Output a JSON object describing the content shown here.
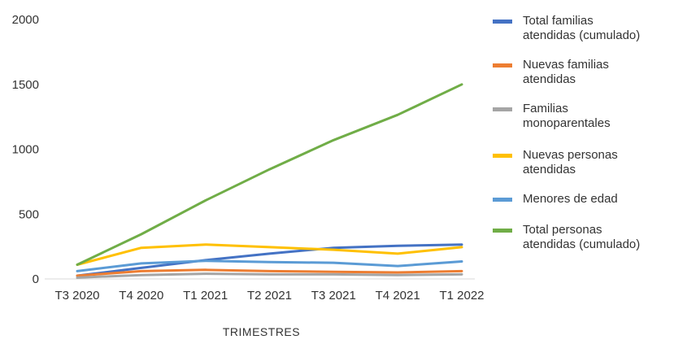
{
  "chart_data": {
    "type": "line",
    "title": "",
    "xlabel": "TRIMESTRES",
    "ylabel": "",
    "ylim": [
      0,
      2000
    ],
    "yticks": [
      0,
      500,
      1000,
      1500,
      2000
    ],
    "grid": false,
    "legend_position": "right",
    "categories": [
      "T3 2020",
      "T4 2020",
      "T1 2021",
      "T2 2021",
      "T3 2021",
      "T4 2021",
      "T1 2022"
    ],
    "series": [
      {
        "name": "Total familias atendidas (cumulado)",
        "legend_lines": [
          "Total familias",
          "atendidas (cumulado)"
        ],
        "color": "#4472C4",
        "values": [
          25,
          85,
          145,
          195,
          240,
          255,
          265
        ]
      },
      {
        "name": "Nuevas familias atendidas",
        "legend_lines": [
          "Nuevas familias",
          "atendidas"
        ],
        "color": "#ED7D31",
        "values": [
          25,
          60,
          70,
          60,
          55,
          50,
          60
        ]
      },
      {
        "name": "Familias monoparentales",
        "legend_lines": [
          "Familias",
          "monoparentales"
        ],
        "color": "#A5A5A5",
        "values": [
          10,
          30,
          40,
          35,
          35,
          30,
          35
        ]
      },
      {
        "name": "Nuevas personas atendidas",
        "legend_lines": [
          "Nuevas personas",
          "atendidas"
        ],
        "color": "#FFC000",
        "values": [
          110,
          240,
          265,
          245,
          225,
          195,
          245
        ]
      },
      {
        "name": "Menores de edad",
        "legend_lines": [
          "Menores de edad"
        ],
        "color": "#5B9BD5",
        "values": [
          60,
          120,
          140,
          130,
          125,
          100,
          135
        ]
      },
      {
        "name": "Total personas atendidas (cumulado)",
        "legend_lines": [
          "Total personas",
          "atendidas (cumulado)"
        ],
        "color": "#70AD47",
        "values": [
          110,
          345,
          605,
          845,
          1070,
          1265,
          1500
        ]
      }
    ]
  }
}
